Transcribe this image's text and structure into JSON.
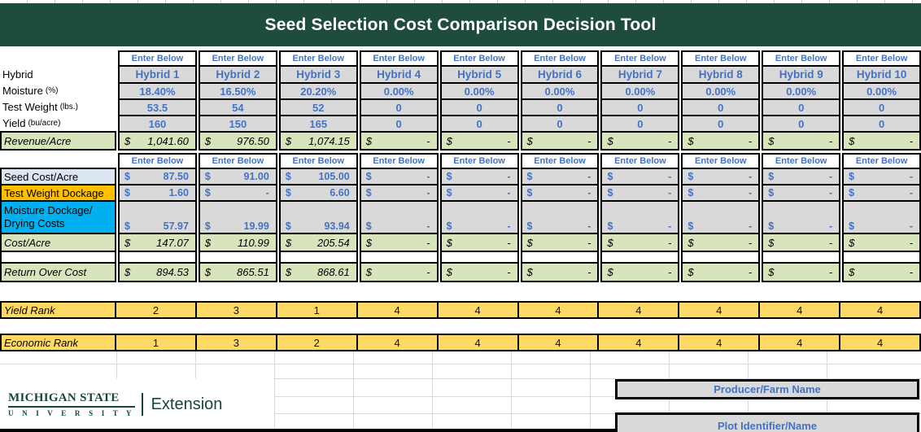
{
  "header": {
    "title": "Seed Selection Cost Comparison Decision Tool"
  },
  "grid": {
    "enter_hint": "Enter Below",
    "currency": "$",
    "rows": {
      "hybrid": {
        "label": "Hybrid",
        "note": "",
        "values": [
          "Hybrid 1",
          "Hybrid 2",
          "Hybrid 3",
          "Hybrid 4",
          "Hybrid 5",
          "Hybrid 6",
          "Hybrid 7",
          "Hybrid 8",
          "Hybrid 9",
          "Hybrid 10"
        ]
      },
      "moisture": {
        "label": "Moisture",
        "note": "(%)",
        "values": [
          "18.40%",
          "16.50%",
          "20.20%",
          "0.00%",
          "0.00%",
          "0.00%",
          "0.00%",
          "0.00%",
          "0.00%",
          "0.00%"
        ]
      },
      "test_weight": {
        "label": "Test Weight",
        "note": "(lbs.)",
        "values": [
          "53.5",
          "54",
          "52",
          "0",
          "0",
          "0",
          "0",
          "0",
          "0",
          "0"
        ]
      },
      "yield": {
        "label": "Yield",
        "note": "(bu/acre)",
        "values": [
          "160",
          "150",
          "165",
          "0",
          "0",
          "0",
          "0",
          "0",
          "0",
          "0"
        ]
      },
      "revenue": {
        "label": "Revenue/Acre",
        "values": [
          "1,041.60",
          "976.50",
          "1,074.15",
          "-",
          "-",
          "-",
          "-",
          "-",
          "-",
          "-"
        ]
      },
      "seed_cost": {
        "label": "Seed Cost/Acre",
        "values": [
          "87.50",
          "91.00",
          "105.00",
          "-",
          "-",
          "-",
          "-",
          "-",
          "-",
          "-"
        ]
      },
      "tw_dockage": {
        "label": "Test Weight Dockage",
        "values": [
          "1.60",
          "-",
          "6.60",
          "-",
          "-",
          "-",
          "-",
          "-",
          "-",
          "-"
        ]
      },
      "moisture_dockage": {
        "label": "Moisture Dockage/",
        "label2": "Drying Costs",
        "values": [
          "57.97",
          "19.99",
          "93.94",
          "-",
          "-",
          "-",
          "-",
          "-",
          "-",
          "-"
        ]
      },
      "cost_acre": {
        "label": "Cost/Acre",
        "values": [
          "147.07",
          "110.99",
          "205.54",
          "-",
          "-",
          "-",
          "-",
          "-",
          "-",
          "-"
        ]
      },
      "return_over_cost": {
        "label": "Return Over Cost",
        "values": [
          "894.53",
          "865.51",
          "868.61",
          "-",
          "-",
          "-",
          "-",
          "-",
          "-",
          "-"
        ]
      },
      "yield_rank": {
        "label": "Yield Rank",
        "values": [
          "2",
          "3",
          "1",
          "4",
          "4",
          "4",
          "4",
          "4",
          "4",
          "4"
        ]
      },
      "economic_rank": {
        "label": "Economic Rank",
        "values": [
          "1",
          "3",
          "2",
          "4",
          "4",
          "4",
          "4",
          "4",
          "4",
          "4"
        ]
      }
    }
  },
  "footer": {
    "logo": {
      "line1": "MICHIGAN STATE",
      "line2": "U N I V E R S I T Y",
      "brand": "Extension"
    },
    "producer_label": "Producer/Farm Name",
    "plot_label": "Plot Identifier/Name"
  },
  "colors": {
    "title_bar_green": "#1e4c3d",
    "msu_logo_green": "#18453b",
    "blue_text": "#4472c4",
    "input_cell_gray": "#d9d9d9",
    "calc_row_green": "#d7e4bc",
    "rank_row_yellow": "#ffd966",
    "test_weight_dockage_orange": "#ffc000",
    "moisture_dockage_cyan": "#00b0f0",
    "seed_cost_periwinkle": "#dce6f1"
  }
}
